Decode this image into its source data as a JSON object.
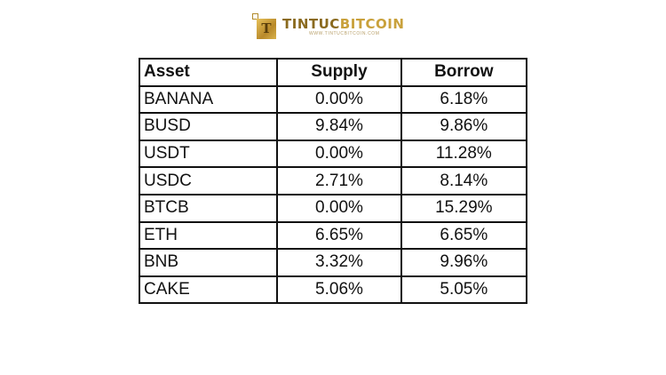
{
  "logo": {
    "icon_letter": "T",
    "title_part1": "TINTUC",
    "title_part2": "BITCOIN",
    "url": "WWW.TINTUCBITCOIN.COM"
  },
  "table": {
    "headers": [
      "Asset",
      "Supply",
      "Borrow"
    ],
    "rows": [
      [
        "BANANA",
        "0.00%",
        "6.18%"
      ],
      [
        "BUSD",
        "9.84%",
        "9.86%"
      ],
      [
        "USDT",
        "0.00%",
        "11.28%"
      ],
      [
        "USDC",
        "2.71%",
        "8.14%"
      ],
      [
        "BTCB",
        "0.00%",
        "15.29%"
      ],
      [
        "ETH",
        "6.65%",
        "6.65%"
      ],
      [
        "BNB",
        "3.32%",
        "9.96%"
      ],
      [
        "CAKE",
        "5.06%",
        "5.05%"
      ]
    ]
  }
}
